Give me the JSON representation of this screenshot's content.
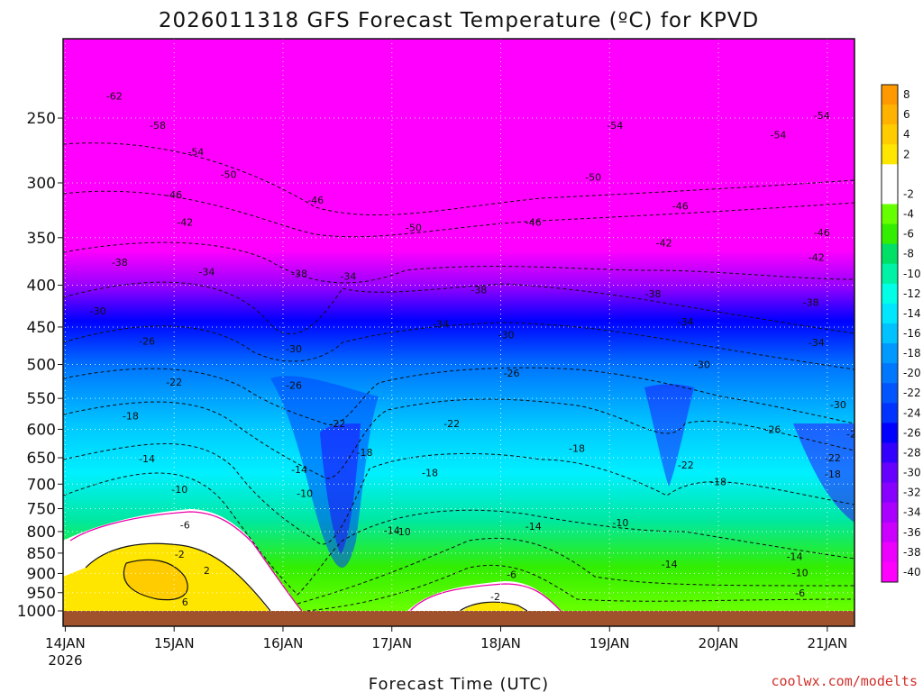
{
  "chart_data": {
    "type": "heatmap",
    "title": "2026011318 GFS Forecast Temperature (ºC) for KPVD",
    "xlabel": "Forecast Time (UTC)",
    "ylabel": "Pressure (hPa)",
    "credit": "coolwx.com/modelts",
    "pressure_levels": [
      "250",
      "300",
      "350",
      "400",
      "450",
      "500",
      "550",
      "600",
      "650",
      "700",
      "750",
      "800",
      "850",
      "900",
      "950",
      "1000"
    ],
    "pressure_range": [
      200,
      1000
    ],
    "x_ticks": [
      {
        "label": "14JAN",
        "sub": "2026"
      },
      {
        "label": "15JAN",
        "sub": ""
      },
      {
        "label": "16JAN",
        "sub": ""
      },
      {
        "label": "17JAN",
        "sub": ""
      },
      {
        "label": "18JAN",
        "sub": ""
      },
      {
        "label": "19JAN",
        "sub": ""
      },
      {
        "label": "20JAN",
        "sub": ""
      },
      {
        "label": "21JAN",
        "sub": ""
      }
    ],
    "x_range_days": [
      -0.02,
      7.25
    ],
    "colorbar": {
      "levels": [
        {
          "label": "8",
          "color": "#ff9900"
        },
        {
          "label": "6",
          "color": "#ffb300"
        },
        {
          "label": "4",
          "color": "#ffcc00"
        },
        {
          "label": "2",
          "color": "#ffe600"
        },
        {
          "label": "",
          "color": "#ffffff"
        },
        {
          "label": "-2",
          "color": "#ffffff"
        },
        {
          "label": "-4",
          "color": "#66ff00"
        },
        {
          "label": "-6",
          "color": "#33ee00"
        },
        {
          "label": "-8",
          "color": "#00e066"
        },
        {
          "label": "-10",
          "color": "#00f2a6"
        },
        {
          "label": "-12",
          "color": "#00ffe6"
        },
        {
          "label": "-14",
          "color": "#00e6ff"
        },
        {
          "label": "-16",
          "color": "#00c2ff"
        },
        {
          "label": "-18",
          "color": "#0099ff"
        },
        {
          "label": "-20",
          "color": "#0077ff"
        },
        {
          "label": "-22",
          "color": "#0055ff"
        },
        {
          "label": "-24",
          "color": "#0033ff"
        },
        {
          "label": "-26",
          "color": "#0000ff"
        },
        {
          "label": "-28",
          "color": "#3300ff"
        },
        {
          "label": "-30",
          "color": "#6600ff"
        },
        {
          "label": "-32",
          "color": "#8800ff"
        },
        {
          "label": "-34",
          "color": "#aa00ff"
        },
        {
          "label": "-36",
          "color": "#cc00ff"
        },
        {
          "label": "-38",
          "color": "#ee00ff"
        },
        {
          "label": "-40",
          "color": "#ff00ff"
        }
      ]
    },
    "contour_labels": [
      {
        "text": "-62",
        "day": 0.45,
        "p": 235
      },
      {
        "text": "-58",
        "day": 0.85,
        "p": 255
      },
      {
        "text": "-54",
        "day": 1.2,
        "p": 275
      },
      {
        "text": "-50",
        "day": 1.5,
        "p": 293
      },
      {
        "text": "-46",
        "day": 1.0,
        "p": 310
      },
      {
        "text": "-42",
        "day": 1.1,
        "p": 335
      },
      {
        "text": "-38",
        "day": 0.5,
        "p": 375
      },
      {
        "text": "-34",
        "day": 1.3,
        "p": 385
      },
      {
        "text": "-38",
        "day": 2.15,
        "p": 387
      },
      {
        "text": "-34",
        "day": 2.6,
        "p": 390
      },
      {
        "text": "-46",
        "day": 2.3,
        "p": 315
      },
      {
        "text": "-30",
        "day": 0.3,
        "p": 430
      },
      {
        "text": "-26",
        "day": 0.75,
        "p": 468
      },
      {
        "text": "-22",
        "day": 1.0,
        "p": 525
      },
      {
        "text": "-18",
        "day": 0.6,
        "p": 578
      },
      {
        "text": "-14",
        "day": 0.75,
        "p": 652
      },
      {
        "text": "-10",
        "day": 1.05,
        "p": 710
      },
      {
        "text": "-6",
        "day": 1.1,
        "p": 785
      },
      {
        "text": "-2",
        "day": 1.05,
        "p": 852
      },
      {
        "text": "2",
        "day": 1.3,
        "p": 892
      },
      {
        "text": "6",
        "day": 1.1,
        "p": 975
      },
      {
        "text": "-30",
        "day": 2.1,
        "p": 478
      },
      {
        "text": "-26",
        "day": 2.1,
        "p": 530
      },
      {
        "text": "-22",
        "day": 2.5,
        "p": 590
      },
      {
        "text": "-18",
        "day": 2.75,
        "p": 640
      },
      {
        "text": "-14",
        "day": 2.15,
        "p": 672
      },
      {
        "text": "-10",
        "day": 2.2,
        "p": 718
      },
      {
        "text": "-50",
        "day": 3.2,
        "p": 340
      },
      {
        "text": "-46",
        "day": 4.3,
        "p": 335
      },
      {
        "text": "-54",
        "day": 5.05,
        "p": 255
      },
      {
        "text": "-50",
        "day": 4.85,
        "p": 295
      },
      {
        "text": "-46",
        "day": 5.65,
        "p": 320
      },
      {
        "text": "-42",
        "day": 5.5,
        "p": 355
      },
      {
        "text": "-38",
        "day": 3.8,
        "p": 405
      },
      {
        "text": "-38",
        "day": 5.4,
        "p": 410
      },
      {
        "text": "-34",
        "day": 3.45,
        "p": 446
      },
      {
        "text": "-30",
        "day": 4.05,
        "p": 460
      },
      {
        "text": "-34",
        "day": 5.7,
        "p": 443
      },
      {
        "text": "-26",
        "day": 4.1,
        "p": 512
      },
      {
        "text": "-22",
        "day": 3.55,
        "p": 590
      },
      {
        "text": "-18",
        "day": 3.35,
        "p": 678
      },
      {
        "text": "-18",
        "day": 4.7,
        "p": 633
      },
      {
        "text": "-14",
        "day": 3.0,
        "p": 797
      },
      {
        "text": "-10",
        "day": 3.1,
        "p": 800
      },
      {
        "text": "-6",
        "day": 4.1,
        "p": 903
      },
      {
        "text": "-2",
        "day": 3.95,
        "p": 960
      },
      {
        "text": "-14",
        "day": 4.3,
        "p": 788
      },
      {
        "text": "-10",
        "day": 5.1,
        "p": 780
      },
      {
        "text": "-30",
        "day": 5.85,
        "p": 500
      },
      {
        "text": "-26",
        "day": 6.5,
        "p": 600
      },
      {
        "text": "-22",
        "day": 5.7,
        "p": 663
      },
      {
        "text": "-18",
        "day": 6.0,
        "p": 695
      },
      {
        "text": "-14",
        "day": 5.55,
        "p": 877
      },
      {
        "text": "-54",
        "day": 6.55,
        "p": 262
      },
      {
        "text": "-54",
        "day": 6.95,
        "p": 248
      },
      {
        "text": "-46",
        "day": 6.95,
        "p": 345
      },
      {
        "text": "-42",
        "day": 6.9,
        "p": 370
      },
      {
        "text": "-38",
        "day": 6.85,
        "p": 420
      },
      {
        "text": "-34",
        "day": 6.9,
        "p": 470
      },
      {
        "text": "-30",
        "day": 7.1,
        "p": 560
      },
      {
        "text": "-26",
        "day": 7.25,
        "p": 608
      },
      {
        "text": "-22",
        "day": 7.05,
        "p": 650
      },
      {
        "text": "-18",
        "day": 7.05,
        "p": 680
      },
      {
        "text": "-14",
        "day": 6.7,
        "p": 858
      },
      {
        "text": "-10",
        "day": 6.75,
        "p": 898
      },
      {
        "text": "-6",
        "day": 6.75,
        "p": 950
      },
      {
        "text": "-50",
        "day": 7.7,
        "p": 308
      }
    ]
  }
}
